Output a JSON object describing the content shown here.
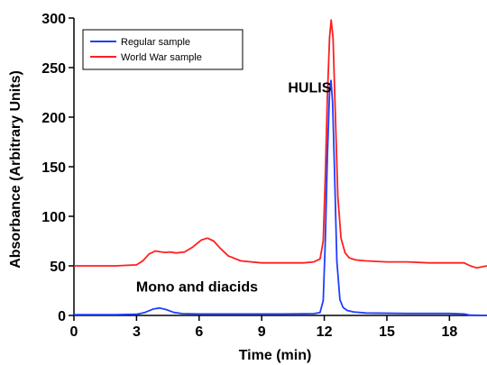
{
  "chart_data": {
    "type": "line",
    "xlabel": "Time (min)",
    "ylabel": "Absorbance (Arbitrary Units)",
    "xlim": [
      0,
      19.8
    ],
    "ylim": [
      0,
      300
    ],
    "x_ticks": [
      0,
      3,
      6,
      9,
      12,
      15,
      18
    ],
    "y_ticks": [
      0,
      50,
      100,
      150,
      200,
      250,
      300
    ],
    "grid": false,
    "legend_position": "top-left",
    "annotations": [
      {
        "text": "HULIS",
        "x": 11.3,
        "y": 225
      },
      {
        "text": "Mono and diacids",
        "x": 5.9,
        "y": 24
      }
    ],
    "series": [
      {
        "name": "Regular sample",
        "color": "#1f3fff",
        "x": [
          0,
          2.0,
          3.0,
          3.4,
          3.8,
          4.1,
          4.4,
          4.8,
          5.2,
          6.0,
          8.0,
          10.0,
          11.5,
          11.8,
          11.95,
          12.05,
          12.15,
          12.25,
          12.32,
          12.4,
          12.5,
          12.6,
          12.75,
          12.9,
          13.1,
          13.4,
          14.0,
          16.0,
          18.0,
          18.7,
          19.0,
          19.8
        ],
        "values": [
          0.8,
          0.8,
          1.2,
          3.0,
          6.5,
          7.5,
          6.0,
          3.0,
          1.8,
          1.5,
          1.5,
          1.5,
          1.8,
          3.0,
          15,
          75,
          160,
          225,
          237,
          215,
          140,
          55,
          16,
          8,
          5,
          3.5,
          2.5,
          2.0,
          2.0,
          1.5,
          0.3,
          0
        ]
      },
      {
        "name": "World War sample",
        "color": "#ff1f1f",
        "x": [
          0,
          2.0,
          3.0,
          3.3,
          3.6,
          3.9,
          4.2,
          4.4,
          4.6,
          4.9,
          5.3,
          5.7,
          6.1,
          6.4,
          6.7,
          7.0,
          7.4,
          8.0,
          9.0,
          10.0,
          11.0,
          11.5,
          11.8,
          11.95,
          12.05,
          12.15,
          12.25,
          12.33,
          12.42,
          12.52,
          12.65,
          12.8,
          13.0,
          13.2,
          13.5,
          14.0,
          15.0,
          16.0,
          17.0,
          18.0,
          18.7,
          19.0,
          19.3,
          19.8
        ],
        "values": [
          50,
          50,
          51,
          55,
          62,
          65,
          64,
          63.5,
          64,
          63,
          64,
          69,
          76,
          78,
          75,
          68,
          60,
          55,
          53,
          53,
          53,
          54,
          57,
          75,
          140,
          220,
          280,
          298,
          280,
          210,
          120,
          78,
          63,
          58,
          56,
          55,
          54,
          54,
          53,
          53,
          53,
          50,
          48,
          50
        ]
      }
    ]
  }
}
